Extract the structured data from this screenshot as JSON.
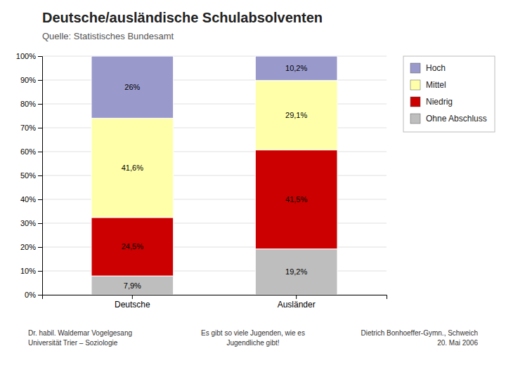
{
  "chart_data": {
    "type": "bar",
    "stacked": true,
    "title": "Deutsche/ausländische Schulabsolventen",
    "subtitle": "Quelle: Statistisches Bundesamt",
    "categories": [
      "Deutsche",
      "Ausländer"
    ],
    "series": [
      {
        "name": "Ohne Abschluss",
        "color": "#BEBEBE",
        "values": [
          7.9,
          19.2
        ],
        "value_labels": [
          "7,9%",
          "19,2%"
        ]
      },
      {
        "name": "Niedrig",
        "color": "#CC0000",
        "values": [
          24.5,
          41.5
        ],
        "value_labels": [
          "24,5%",
          "41,5%"
        ]
      },
      {
        "name": "Mittel",
        "color": "#FFFFAA",
        "values": [
          41.6,
          29.1
        ],
        "value_labels": [
          "41,6%",
          "29,1%"
        ]
      },
      {
        "name": "Hoch",
        "color": "#9999CC",
        "values": [
          26.0,
          10.2
        ],
        "value_labels": [
          "26%",
          "10,2%"
        ]
      }
    ],
    "data_labels": true,
    "ylim": [
      0,
      100
    ],
    "yticks": [
      {
        "value": 0,
        "label": "0%"
      },
      {
        "value": 10,
        "label": "10%"
      },
      {
        "value": 20,
        "label": "20%"
      },
      {
        "value": 30,
        "label": "30%"
      },
      {
        "value": 40,
        "label": "40%"
      },
      {
        "value": 50,
        "label": "50%"
      },
      {
        "value": 60,
        "label": "60%"
      },
      {
        "value": 70,
        "label": "70%"
      },
      {
        "value": 80,
        "label": "80%"
      },
      {
        "value": 90,
        "label": "90%"
      },
      {
        "value": 100,
        "label": "100%"
      }
    ],
    "grid": true,
    "legend": "right",
    "annotations": [
      "Dr. habil. Waldemar Vogelgesang\nUniversität Trier – Soziologie",
      "Es gibt so viele Jugenden, wie es\nJugendliche gibt!",
      "Dietrich Bonhoeffer-Gymn., Schweich\n20. Mai 2006"
    ]
  }
}
